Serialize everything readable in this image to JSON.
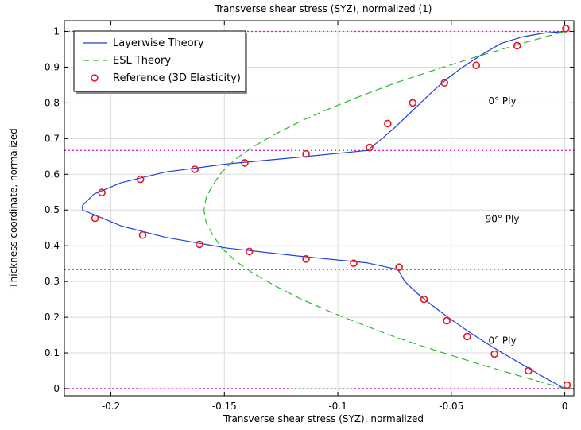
{
  "chart_data": {
    "type": "line",
    "title": "Transverse shear stress (SYZ), normalized (1)",
    "xlabel": "Transverse shear stress (SYZ), normalized",
    "ylabel": "Thickness coordinate, normalized",
    "xlim": [
      -0.2205,
      0.004
    ],
    "ylim": [
      -0.02,
      1.03
    ],
    "xticks": [
      -0.2,
      -0.15,
      -0.1,
      -0.05,
      0
    ],
    "xtick_labels": [
      "-0.2",
      "-0.15",
      "-0.1",
      "-0.05",
      "0"
    ],
    "yticks": [
      0,
      0.1,
      0.2,
      0.3,
      0.4,
      0.5,
      0.6,
      0.7,
      0.8,
      0.9,
      1
    ],
    "ytick_labels": [
      "0",
      "0.1",
      "0.2",
      "0.3",
      "0.4",
      "0.5",
      "0.6",
      "0.7",
      "0.8",
      "0.9",
      "1"
    ],
    "grid": true,
    "legend_position": "top-left",
    "ply_boundaries": [
      0,
      0.3333,
      0.6667,
      1
    ],
    "annotations": [
      {
        "text": "0° Ply",
        "x": -0.0275,
        "y": 0.805
      },
      {
        "text": "90° Ply",
        "x": -0.0275,
        "y": 0.475
      },
      {
        "text": "0° Ply",
        "x": -0.0275,
        "y": 0.135
      }
    ],
    "series": [
      {
        "name": "Layerwise Theory",
        "style": "solid",
        "color": "#1f3fdc",
        "x": [
          0,
          -0.0095,
          -0.0185,
          -0.0275,
          -0.036,
          -0.044,
          -0.0515,
          -0.0585,
          -0.065,
          -0.0705,
          -0.0735,
          -0.087,
          -0.117,
          -0.149,
          -0.176,
          -0.1955,
          -0.2075,
          -0.2125,
          -0.2125,
          -0.2075,
          -0.1955,
          -0.176,
          -0.149,
          -0.117,
          -0.087,
          -0.0805,
          -0.0745,
          -0.069,
          -0.0635,
          -0.058,
          -0.052,
          -0.045,
          -0.037,
          -0.028,
          -0.0185,
          -0.0095,
          0
        ],
        "y": [
          0,
          0.0333,
          0.0667,
          0.1,
          0.1333,
          0.1667,
          0.2,
          0.2333,
          0.2667,
          0.3,
          0.3333,
          0.352,
          0.371,
          0.3936,
          0.4236,
          0.4555,
          0.4872,
          0.5,
          0.5128,
          0.5445,
          0.5764,
          0.6064,
          0.629,
          0.648,
          0.6667,
          0.7,
          0.7333,
          0.7667,
          0.8,
          0.8333,
          0.8667,
          0.9,
          0.9333,
          0.9667,
          0.985,
          0.995,
          1
        ]
      },
      {
        "name": "ESL Theory",
        "style": "dashed",
        "color": "#2db82d",
        "x": [
          0,
          -0.02,
          -0.039,
          -0.057,
          -0.074,
          -0.089,
          -0.103,
          -0.116,
          -0.127,
          -0.137,
          -0.145,
          -0.151,
          -0.155,
          -0.158,
          -0.159,
          -0.158,
          -0.155,
          -0.151,
          -0.145,
          -0.137,
          -0.127,
          -0.116,
          -0.103,
          -0.089,
          -0.074,
          -0.057,
          -0.039,
          -0.02,
          0
        ],
        "y": [
          0,
          0.0357,
          0.0714,
          0.1071,
          0.1429,
          0.1786,
          0.2143,
          0.25,
          0.2857,
          0.3214,
          0.3571,
          0.3929,
          0.4286,
          0.4643,
          0.5,
          0.5357,
          0.5714,
          0.6071,
          0.6429,
          0.6786,
          0.7143,
          0.75,
          0.7857,
          0.8214,
          0.8571,
          0.8929,
          0.9286,
          0.9643,
          1
        ]
      },
      {
        "name": "Reference (3D Elasticity)",
        "style": "markers",
        "color": "#e8141e",
        "x": [
          0.001,
          -0.016,
          -0.031,
          -0.043,
          -0.052,
          -0.062,
          -0.073,
          -0.093,
          -0.114,
          -0.139,
          -0.161,
          -0.186,
          -0.207,
          -0.204,
          -0.187,
          -0.163,
          -0.141,
          -0.114,
          -0.086,
          -0.078,
          -0.067,
          -0.053,
          -0.039,
          -0.021,
          0.0005
        ],
        "y": [
          0.01,
          0.05,
          0.097,
          0.146,
          0.19,
          0.25,
          0.34,
          0.351,
          0.363,
          0.384,
          0.404,
          0.43,
          0.477,
          0.549,
          0.586,
          0.614,
          0.632,
          0.657,
          0.675,
          0.742,
          0.8,
          0.856,
          0.905,
          0.96,
          1.008
        ]
      }
    ]
  }
}
